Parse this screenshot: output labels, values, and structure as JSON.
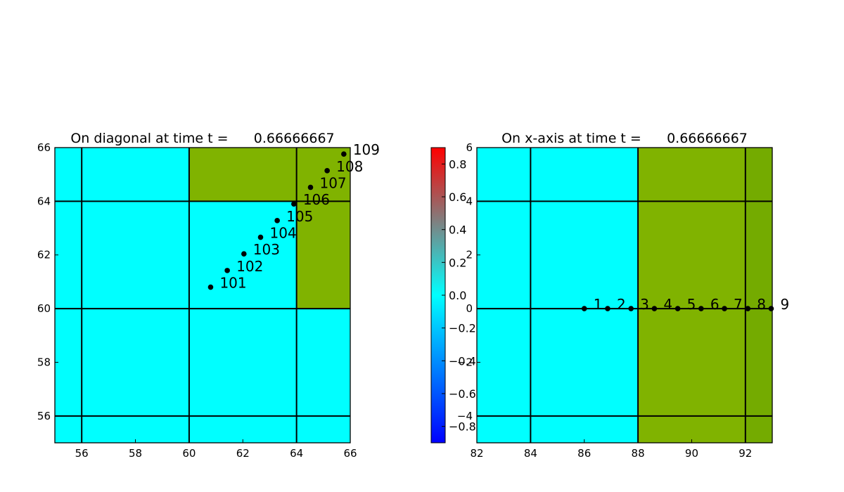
{
  "chart_data": [
    {
      "type": "scatter",
      "title": "On diagonal at time t =      0.66666667",
      "xlim": [
        55,
        66
      ],
      "ylim": [
        55,
        66
      ],
      "xticks": [
        "56",
        "58",
        "60",
        "62",
        "64",
        "66"
      ],
      "yticks": [
        "56",
        "58",
        "60",
        "62",
        "64",
        "66"
      ],
      "grid_lines_x": [
        56,
        60,
        64
      ],
      "grid_lines_y": [
        56,
        60,
        64
      ],
      "regions": [
        {
          "x0": 55,
          "x1": 66,
          "y0": 55,
          "y1": 66,
          "color": "#00ffff"
        },
        {
          "x0": 60,
          "x1": 66,
          "y0": 64,
          "y1": 66,
          "color": "#80b300"
        },
        {
          "x0": 64,
          "x1": 66,
          "y0": 60,
          "y1": 64,
          "color": "#80b300"
        }
      ],
      "points": [
        {
          "label": "101",
          "x": 60.8,
          "y": 60.8
        },
        {
          "label": "102",
          "x": 61.42,
          "y": 61.42
        },
        {
          "label": "103",
          "x": 62.04,
          "y": 62.04
        },
        {
          "label": "104",
          "x": 62.66,
          "y": 62.66
        },
        {
          "label": "105",
          "x": 63.28,
          "y": 63.28
        },
        {
          "label": "106",
          "x": 63.9,
          "y": 63.9
        },
        {
          "label": "107",
          "x": 64.52,
          "y": 64.52
        },
        {
          "label": "108",
          "x": 65.14,
          "y": 65.14
        },
        {
          "label": "109",
          "x": 65.76,
          "y": 65.76
        }
      ]
    },
    {
      "type": "scatter",
      "title": "On x-axis at time t =      0.66666667",
      "xlim": [
        82,
        93
      ],
      "ylim": [
        -5,
        6
      ],
      "xticks": [
        "82",
        "84",
        "86",
        "88",
        "90",
        "92"
      ],
      "yticks": [
        "−4",
        "−2",
        "0",
        "2",
        "4",
        "6"
      ],
      "grid_lines_x": [
        84,
        88,
        92
      ],
      "grid_lines_y": [
        -4,
        0,
        4
      ],
      "regions": [
        {
          "x0": 82,
          "x1": 93,
          "y0": -5,
          "y1": 6,
          "color": "#00ffff"
        },
        {
          "x0": 88,
          "x1": 92,
          "y0": -5,
          "y1": 6,
          "color": "#80b300"
        },
        {
          "x0": 92,
          "x1": 93,
          "y0": -5,
          "y1": 6,
          "color": "#74ab00"
        }
      ],
      "points": [
        {
          "label": "1",
          "x": 86.0,
          "y": 0
        },
        {
          "label": "2",
          "x": 86.87,
          "y": 0
        },
        {
          "label": "3",
          "x": 87.74,
          "y": 0
        },
        {
          "label": "4",
          "x": 88.61,
          "y": 0
        },
        {
          "label": "5",
          "x": 89.48,
          "y": 0
        },
        {
          "label": "6",
          "x": 90.35,
          "y": 0
        },
        {
          "label": "7",
          "x": 91.22,
          "y": 0
        },
        {
          "label": "8",
          "x": 92.09,
          "y": 0
        },
        {
          "label": "9",
          "x": 92.96,
          "y": 0
        }
      ]
    },
    {
      "type": "colorbar",
      "range": [
        -0.9,
        0.9
      ],
      "ticks": [
        "−0.8",
        "−0.6",
        "−0.4",
        "−0.2",
        "0.0",
        "0.2",
        "0.4",
        "0.6",
        "0.8"
      ],
      "tick_values": [
        -0.8,
        -0.6,
        -0.4,
        -0.2,
        0.0,
        0.2,
        0.4,
        0.6,
        0.8
      ],
      "colors": [
        "#0000ff",
        "#00ffff",
        "#ff0000"
      ]
    }
  ]
}
